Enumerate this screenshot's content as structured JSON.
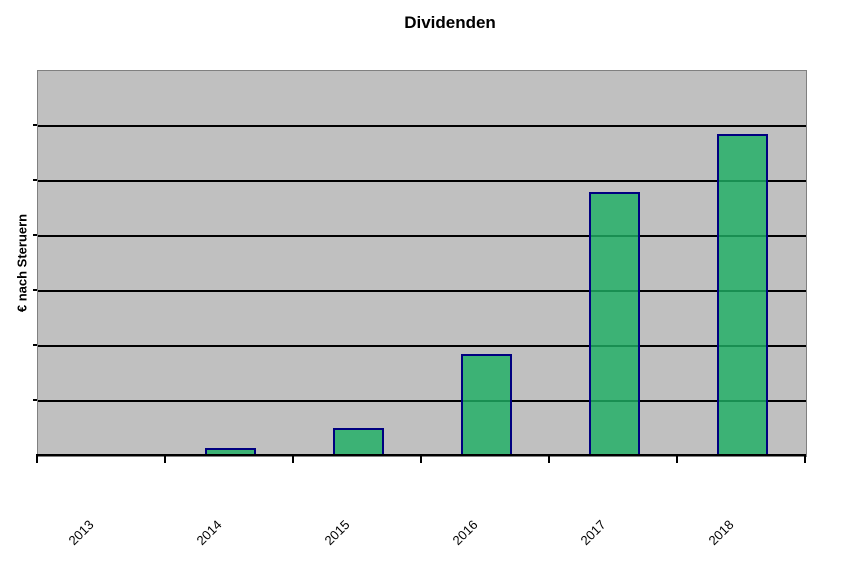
{
  "title": "Dividenden",
  "y_axis_label": "€ nach Steruern",
  "chart_data": {
    "type": "bar",
    "title": "Dividenden",
    "categories": [
      "2013",
      "2014",
      "2015",
      "2016",
      "2017",
      "2018"
    ],
    "values": [
      0,
      0.15,
      0.5,
      1.85,
      4.8,
      5.85
    ],
    "xlabel": "",
    "ylabel": "€ nach Steruern",
    "ylim": [
      0,
      7
    ],
    "y_tick_labels_visible": false,
    "gridlines": "horizontal, 7 equal intervals, black",
    "legend_position": "none",
    "note": "Value axis shows no numeric labels; values estimated in gridline units (1 unit = 1 gridline interval)."
  },
  "colors": {
    "page_bg": "#FFFFFF",
    "plot_bg": "#C0C0C0",
    "plot_border": "#808080",
    "gridline": "#000000",
    "axis": "#000000",
    "bar_fill": "rgba(30,174,100,0.82)",
    "bar_border": "#000080",
    "text": "#000000"
  }
}
